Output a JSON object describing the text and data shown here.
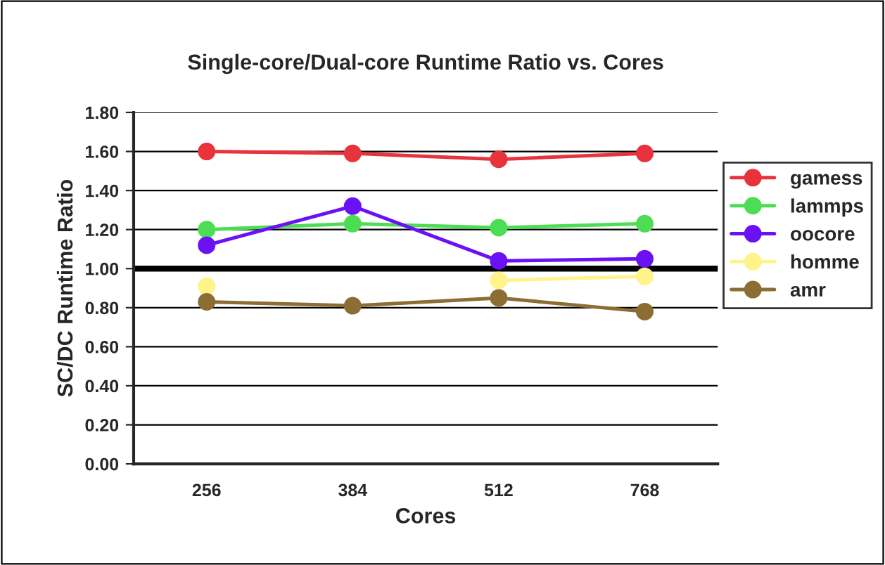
{
  "chart_data": {
    "type": "line",
    "title": "Single-core/Dual-core Runtime Ratio vs. Cores",
    "xlabel": "Cores",
    "ylabel": "SC/DC Runtime Ratio",
    "categories": [
      "256",
      "384",
      "512",
      "768"
    ],
    "series": [
      {
        "name": "gamess",
        "color": "#e8323c",
        "values": [
          1.6,
          1.59,
          1.56,
          1.59
        ]
      },
      {
        "name": "lammps",
        "color": "#4ddd55",
        "values": [
          1.2,
          1.23,
          1.21,
          1.23
        ]
      },
      {
        "name": "oocore",
        "color": "#6a11f5",
        "values": [
          1.12,
          1.32,
          1.04,
          1.05
        ]
      },
      {
        "name": "homme",
        "color": "#fff38a",
        "values": [
          0.91,
          null,
          0.94,
          0.96
        ]
      },
      {
        "name": "amr",
        "color": "#8c6d34",
        "values": [
          0.83,
          0.81,
          0.85,
          0.78
        ]
      }
    ],
    "ylim": [
      0,
      1.8
    ],
    "yticks": [
      {
        "value": 0,
        "label": "0.00"
      },
      {
        "value": 0.2,
        "label": "0.20"
      },
      {
        "value": 0.4,
        "label": "0.40"
      },
      {
        "value": 0.6,
        "label": "0.60"
      },
      {
        "value": 0.8,
        "label": "0.80"
      },
      {
        "value": 1.0,
        "label": "1.00"
      },
      {
        "value": 1.2,
        "label": "1.20"
      },
      {
        "value": 1.4,
        "label": "1.40"
      },
      {
        "value": 1.6,
        "label": "1.60"
      },
      {
        "value": 1.8,
        "label": "1.80"
      }
    ],
    "ref_lines": [
      {
        "axis": "y",
        "value": 1.0,
        "color": "#000000"
      }
    ],
    "grid": "y",
    "legend": "right",
    "marker": "circle",
    "line_style": "solid"
  }
}
